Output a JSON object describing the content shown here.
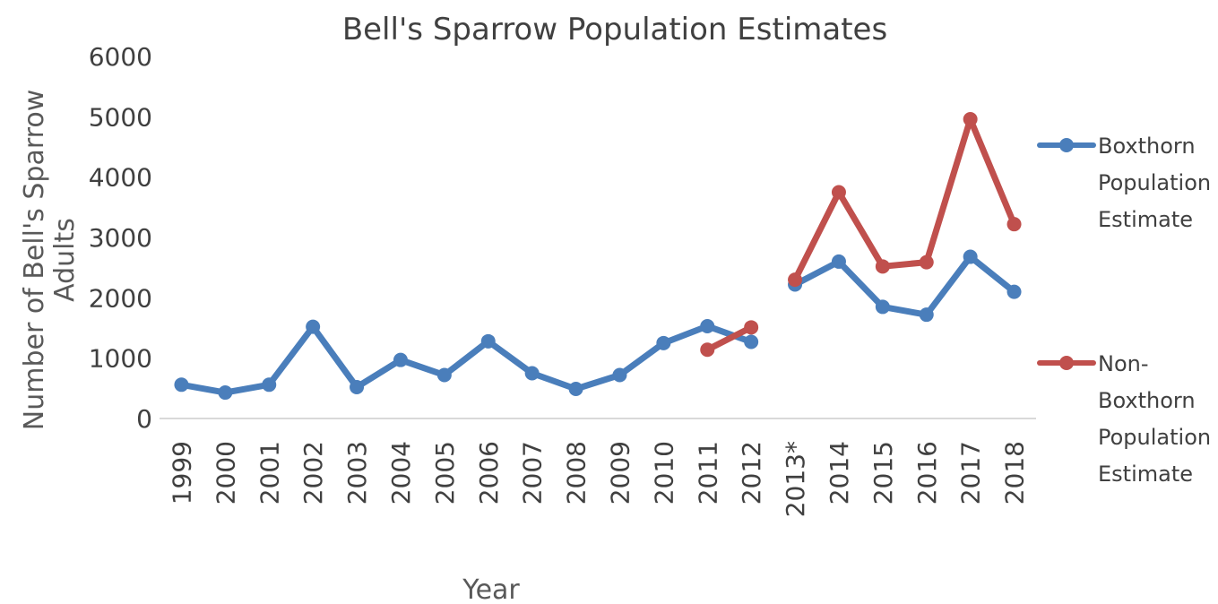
{
  "chart_data": {
    "type": "line",
    "title": "Bell's Sparrow Population Estimates",
    "xlabel": "Year",
    "ylabel_lines": [
      "Number of Bell's Sparrow",
      "Adults"
    ],
    "categories": [
      "1999",
      "2000",
      "2001",
      "2002",
      "2003",
      "2004",
      "2005",
      "2006",
      "2007",
      "2008",
      "2009",
      "2010",
      "2011",
      "2012",
      "2013*",
      "2014",
      "2015",
      "2016",
      "2017",
      "2018"
    ],
    "ylim": [
      0,
      6000
    ],
    "yticks": [
      "0",
      "1000",
      "2000",
      "3000",
      "4000",
      "5000",
      "6000"
    ],
    "grid": false,
    "legend_position": "right",
    "series": [
      {
        "name_lines": [
          "Boxthorn",
          "Population",
          "Estimate"
        ],
        "color": "#4a7ebb",
        "segments": [
          [
            {
              "x": "1999",
              "y": 560
            },
            {
              "x": "2000",
              "y": 430
            },
            {
              "x": "2001",
              "y": 560
            },
            {
              "x": "2002",
              "y": 1520
            },
            {
              "x": "2003",
              "y": 520
            },
            {
              "x": "2004",
              "y": 970
            },
            {
              "x": "2005",
              "y": 720
            },
            {
              "x": "2006",
              "y": 1280
            },
            {
              "x": "2007",
              "y": 750
            },
            {
              "x": "2008",
              "y": 490
            },
            {
              "x": "2009",
              "y": 720
            },
            {
              "x": "2010",
              "y": 1250
            },
            {
              "x": "2011",
              "y": 1530
            },
            {
              "x": "2012",
              "y": 1270
            }
          ],
          [
            {
              "x": "2013*",
              "y": 2220
            },
            {
              "x": "2014",
              "y": 2600
            },
            {
              "x": "2015",
              "y": 1850
            },
            {
              "x": "2016",
              "y": 1720
            },
            {
              "x": "2017",
              "y": 2680
            },
            {
              "x": "2018",
              "y": 2100
            }
          ]
        ]
      },
      {
        "name_lines": [
          "Non-",
          "Boxthorn",
          "Population",
          "Estimate"
        ],
        "color": "#c0504d",
        "segments": [
          [
            {
              "x": "2011",
              "y": 1140
            },
            {
              "x": "2012",
              "y": 1510
            }
          ],
          [
            {
              "x": "2013*",
              "y": 2300
            },
            {
              "x": "2014",
              "y": 3750
            },
            {
              "x": "2015",
              "y": 2520
            },
            {
              "x": "2016",
              "y": 2590
            },
            {
              "x": "2017",
              "y": 4960
            },
            {
              "x": "2018",
              "y": 3220
            }
          ]
        ]
      }
    ]
  }
}
